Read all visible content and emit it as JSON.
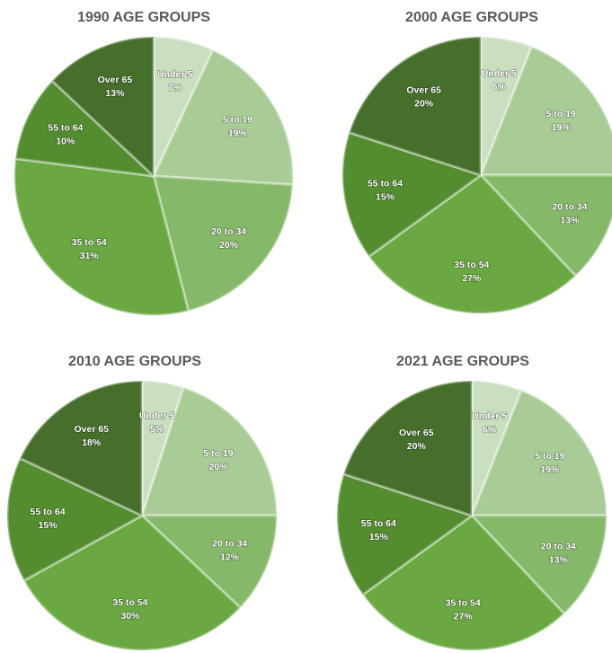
{
  "chart_data": [
    {
      "type": "pie",
      "title": "1990 AGE GROUPS",
      "categories": [
        "Under 5",
        "5 to 19",
        "20 to 34",
        "35 to 54",
        "55 to 64",
        "Over 65"
      ],
      "values": [
        7,
        19,
        20,
        31,
        10,
        13
      ],
      "value_labels": [
        "7%",
        "19%",
        "20%",
        "31%",
        "10%",
        "13%"
      ],
      "colors": [
        "#c9dfc0",
        "#a9cc96",
        "#86b86a",
        "#6aa842",
        "#548d30",
        "#456f2a"
      ]
    },
    {
      "type": "pie",
      "title": "2000 AGE GROUPS",
      "categories": [
        "Under 5",
        "5 to 19",
        "20 to 34",
        "35 to 54",
        "55 to 64",
        "Over 65"
      ],
      "values": [
        6,
        19,
        13,
        27,
        15,
        20
      ],
      "value_labels": [
        "6%",
        "19%",
        "13%",
        "27%",
        "15%",
        "20%"
      ],
      "colors": [
        "#c9dfc0",
        "#a9cc96",
        "#86b86a",
        "#6aa842",
        "#548d30",
        "#456f2a"
      ]
    },
    {
      "type": "pie",
      "title": "2010 AGE GROUPS",
      "categories": [
        "Under 5",
        "5 to 19",
        "20 to 34",
        "35 to 54",
        "55 to 64",
        "Over 65"
      ],
      "values": [
        5,
        20,
        12,
        30,
        15,
        18
      ],
      "value_labels": [
        "5%",
        "20%",
        "12%",
        "30%",
        "15%",
        "18%"
      ],
      "colors": [
        "#c9dfc0",
        "#a9cc96",
        "#86b86a",
        "#6aa842",
        "#548d30",
        "#456f2a"
      ]
    },
    {
      "type": "pie",
      "title": "2021 AGE GROUPS",
      "categories": [
        "Under 5",
        "5 to 19",
        "20 to 34",
        "35 to 54",
        "55 to 64",
        "Over 65"
      ],
      "values": [
        6,
        19,
        13,
        27,
        15,
        20
      ],
      "value_labels": [
        "6%",
        "19%",
        "13%",
        "27%",
        "15%",
        "20%"
      ],
      "colors": [
        "#c9dfc0",
        "#a9cc96",
        "#86b86a",
        "#6aa842",
        "#548d30",
        "#456f2a"
      ]
    }
  ]
}
